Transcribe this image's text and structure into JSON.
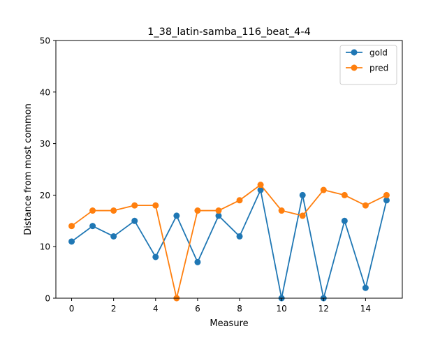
{
  "chart_data": {
    "type": "line",
    "title": "1_38_latin-samba_116_beat_4-4",
    "xlabel": "Measure",
    "ylabel": "Distance from most common",
    "xlim": [
      -0.75,
      15.75
    ],
    "ylim": [
      0,
      50
    ],
    "xticks": [
      0,
      2,
      4,
      6,
      8,
      10,
      12,
      14
    ],
    "yticks": [
      0,
      10,
      20,
      30,
      40,
      50
    ],
    "x": [
      0,
      1,
      2,
      3,
      4,
      5,
      6,
      7,
      8,
      9,
      10,
      11,
      12,
      13,
      14,
      15
    ],
    "series": [
      {
        "name": "gold",
        "color": "#1f77b4",
        "values": [
          11,
          14,
          12,
          15,
          8,
          16,
          7,
          16,
          12,
          21,
          0,
          20,
          0,
          15,
          2,
          19
        ]
      },
      {
        "name": "pred",
        "color": "#ff7f0e",
        "values": [
          14,
          17,
          17,
          18,
          18,
          0,
          17,
          17,
          19,
          22,
          17,
          16,
          21,
          20,
          18,
          20
        ]
      }
    ],
    "legend": "top-right",
    "grid": false
  }
}
